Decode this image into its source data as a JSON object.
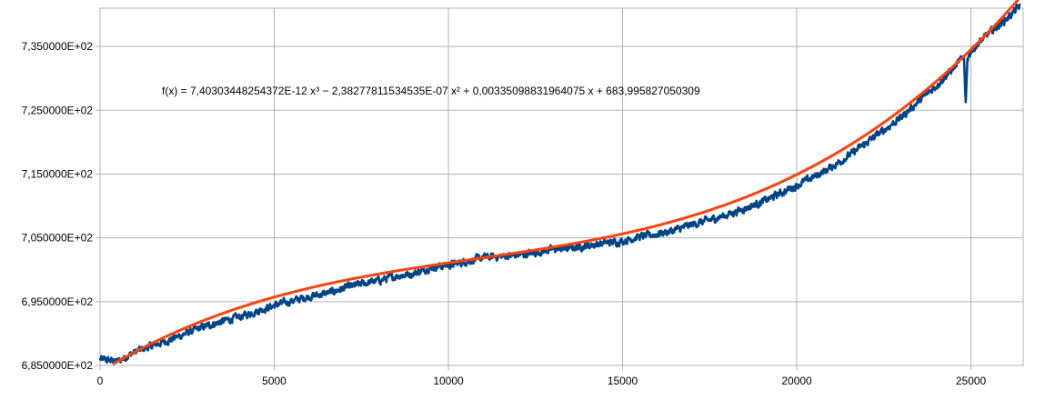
{
  "chart_data": {
    "type": "line",
    "title": "",
    "xlabel": "",
    "ylabel": "",
    "xlim": [
      0,
      26500
    ],
    "ylim": [
      685,
      741
    ],
    "grid": true,
    "legend": "none",
    "x_ticks": [
      0,
      5000,
      10000,
      15000,
      20000,
      25000
    ],
    "x_tick_labels": [
      "0",
      "5000",
      "10000",
      "15000",
      "20000",
      "25000"
    ],
    "y_ticks": [
      685,
      695,
      705,
      715,
      725,
      735
    ],
    "y_tick_labels": [
      "6,850000E+02",
      "6,950000E+02",
      "7,050000E+02",
      "7,150000E+02",
      "7,250000E+02",
      "7,350000E+02"
    ],
    "annotation": "f(x) = 7,40303448254372E-12 x³ − 2,38277811534535E-07 x² + 0,00335098831964075 x + 683,995827050309",
    "series": [
      {
        "role": "data",
        "color": "#004586",
        "x": [
          0,
          500,
          1000,
          1500,
          2000,
          2500,
          3000,
          3500,
          4000,
          4500,
          5000,
          5500,
          6000,
          6500,
          7000,
          7500,
          8000,
          8500,
          9000,
          9500,
          10000,
          10500,
          11000,
          11500,
          12000,
          12500,
          13000,
          13500,
          14000,
          14500,
          15000,
          15500,
          16000,
          16500,
          17000,
          17500,
          18000,
          18500,
          19000,
          19500,
          20000,
          20500,
          21000,
          21500,
          22000,
          22500,
          23000,
          23500,
          24000,
          24500,
          24800,
          24850,
          24900,
          25000,
          25500,
          26000,
          26400
        ],
        "y": [
          686.0,
          685.6,
          687.1,
          688.1,
          689.0,
          690.1,
          691.1,
          691.9,
          692.6,
          693.5,
          694.4,
          695.1,
          695.8,
          696.3,
          697.1,
          697.8,
          698.3,
          699.0,
          699.4,
          700.4,
          700.7,
          701.3,
          701.9,
          702.1,
          702.3,
          702.7,
          703.2,
          703.4,
          703.8,
          704.2,
          704.5,
          705.2,
          705.6,
          706.2,
          707.1,
          707.8,
          708.6,
          709.6,
          710.6,
          711.9,
          713.2,
          714.6,
          716.1,
          717.9,
          719.9,
          721.9,
          723.9,
          726.4,
          728.8,
          731.6,
          733.4,
          726.0,
          733.1,
          734.3,
          737.0,
          739.2,
          741.3
        ]
      },
      {
        "role": "trendline",
        "color": "#ff420e",
        "coefficients": [
          7.40303448254372e-12,
          -2.38277811534535e-07,
          0.00335098831964075,
          683.995827050309
        ]
      }
    ]
  }
}
